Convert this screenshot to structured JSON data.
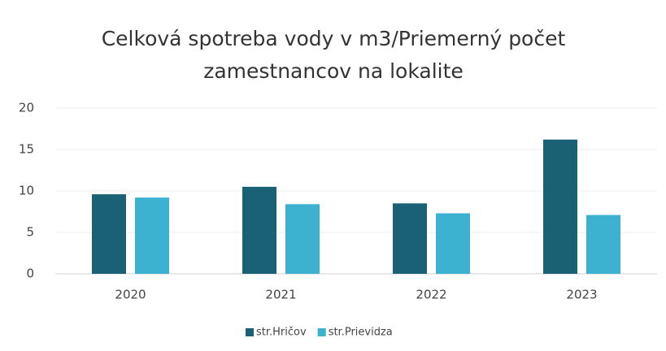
{
  "chart_data": {
    "type": "bar",
    "title": "Celková spotreba vody v m3/Priemerný počet zamestnancov na lokalite",
    "categories": [
      "2020",
      "2021",
      "2022",
      "2023"
    ],
    "series": [
      {
        "name": "str.Hričov",
        "color": "#1b6176",
        "values": [
          9.6,
          10.5,
          8.5,
          16.2
        ]
      },
      {
        "name": "str.Prievidza",
        "color": "#3cb1d0",
        "values": [
          9.2,
          8.4,
          7.3,
          7.1
        ]
      }
    ],
    "ylim": [
      0,
      20
    ],
    "yticks": [
      0,
      5,
      10,
      15,
      20
    ],
    "grid": true,
    "legend": "bottom"
  }
}
